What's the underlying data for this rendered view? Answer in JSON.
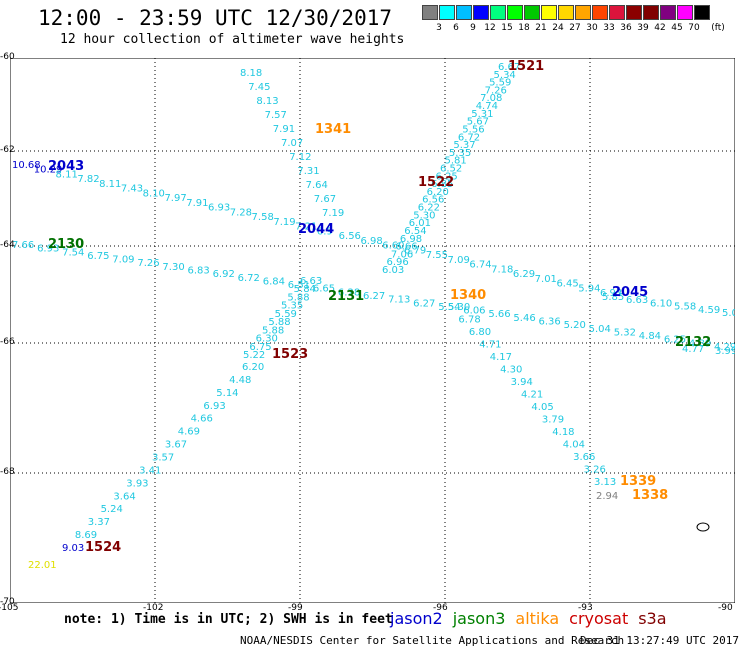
{
  "header": {
    "title": "12:00 - 23:59 UTC 12/30/2017",
    "subtitle": "12 hour collection of altimeter wave heights"
  },
  "color_scale": {
    "unit_label": "(ft)",
    "labels": [
      "3",
      "6",
      "9",
      "12",
      "15",
      "18",
      "21",
      "24",
      "27",
      "30",
      "33",
      "36",
      "39",
      "42",
      "45",
      "70"
    ],
    "colors": [
      "#808080",
      "#00ffff",
      "#00bfff",
      "#0000ff",
      "#00ff7f",
      "#00ff00",
      "#00c800",
      "#ffff00",
      "#ffd700",
      "#ffa500",
      "#ff4500",
      "#dc143c",
      "#8b0000",
      "#800000",
      "#800080",
      "#ff00ff",
      "#000000"
    ]
  },
  "axes": {
    "lat_labels": [
      "-60",
      "-62",
      "-64",
      "-66",
      "-68",
      "-70"
    ],
    "lon_labels": [
      "-105",
      "-102",
      "-99",
      "-96",
      "-93",
      "-90"
    ]
  },
  "tracks": [
    {
      "time": "1521",
      "color": "#800000",
      "labels": [
        "6.67",
        "5.34",
        "5.59",
        "7.26",
        "7.08",
        "4.74",
        "5.31",
        "5.67",
        "5.56",
        "6.72",
        "5.37",
        "5.35",
        "5.81",
        "6.52",
        "6.25",
        "6.85",
        "6.20",
        "6.56",
        "6.22",
        "5.30",
        "6.01",
        "6.54",
        "6.98",
        "6.66",
        "7.06",
        "6.96",
        "6.03"
      ]
    },
    {
      "time": "1522",
      "color": "#800000",
      "labels": [
        "6.63",
        "5.84",
        "5.88",
        "5.35",
        "5.59",
        "5.88",
        "5.88",
        "6.30",
        "6.75",
        "5.22"
      ]
    },
    {
      "time": "1523",
      "color": "#800000",
      "labels": [
        "6.20",
        "4.48",
        "5.14",
        "6.93",
        "4.66",
        "4.69",
        "3.67",
        "3.57",
        "3.41",
        "3.93",
        "3.64",
        "5.24",
        "3.37",
        "8.69",
        "9.03"
      ]
    },
    {
      "time": "1524",
      "color": "#800000",
      "labels": [
        "22.01"
      ]
    },
    {
      "time": "1341",
      "color": "#ff8c00",
      "labels": [
        "8.18",
        "7.45",
        "8.13",
        "7.57",
        "7.91",
        "7.07",
        "7.12",
        "7.31",
        "7.64",
        "7.67",
        "7.19"
      ]
    },
    {
      "time": "1340",
      "color": "#ff8c00",
      "labels": [
        "5.30",
        "6.78",
        "6.80",
        "4.71",
        "4.17",
        "4.30",
        "3.94",
        "4.21",
        "4.05",
        "3.79",
        "4.18",
        "4.04",
        "3.66",
        "3.26",
        "3.13"
      ]
    },
    {
      "time": "1339",
      "color": "#ff8c00",
      "labels": [
        "2.94"
      ]
    },
    {
      "time": "1338",
      "color": "#ff8c00",
      "labels": []
    },
    {
      "time": "2043",
      "color": "#0000cc",
      "labels": [
        "10.68",
        "10.29",
        "8.11",
        "7.82",
        "8.11",
        "7.43",
        "8.10",
        "7.97",
        "7.91",
        "6.93",
        "7.28",
        "7.58",
        "7.19",
        "7.21",
        "6.9",
        "6.56",
        "6.98",
        "6.60",
        "6.79",
        "7.55",
        "7.09",
        "6.74",
        "7.18",
        "6.29",
        "7.01",
        "6.45",
        "5.94",
        "6.93"
      ]
    },
    {
      "time": "2044",
      "color": "#0000cc",
      "labels": []
    },
    {
      "time": "2045",
      "color": "#0000cc",
      "labels": [
        "5.85",
        "6.63",
        "6.10",
        "5.58",
        "4.59",
        "5.09"
      ]
    },
    {
      "time": "2130",
      "color": "#007000",
      "labels": [
        "7.66",
        "6.93",
        "7.54",
        "6.75",
        "7.09",
        "7.26",
        "7.30",
        "6.83",
        "6.92",
        "6.72",
        "6.84",
        "6.51",
        "6.65",
        "6.28",
        "6.27",
        "7.13",
        "6.27",
        "5.54",
        "6.06",
        "5.66",
        "5.46",
        "6.36",
        "5.20",
        "5.04",
        "5.32",
        "4.84",
        "6.25",
        "4.89",
        "4.29"
      ]
    },
    {
      "time": "2131",
      "color": "#007000",
      "labels": []
    },
    {
      "time": "2132",
      "color": "#007000",
      "labels": [
        "4.77",
        "3.99"
      ]
    }
  ],
  "legend": {
    "jason2": {
      "label": "jason2",
      "color": "#0000cc"
    },
    "jason3": {
      "label": "jason3",
      "color": "#008000"
    },
    "altika": {
      "label": "altika",
      "color": "#ff8c00"
    },
    "cryosat": {
      "label": "cryosat",
      "color": "#cc0000"
    },
    "s3a": {
      "label": "s3a",
      "color": "#800000"
    }
  },
  "note": "note: 1) Time is in UTC; 2) SWH is in feet",
  "footer": {
    "credit": "NOAA/NESDIS Center for Satellite Applications and Research",
    "date": "Dec 31 13:27:49 UTC 2017"
  }
}
